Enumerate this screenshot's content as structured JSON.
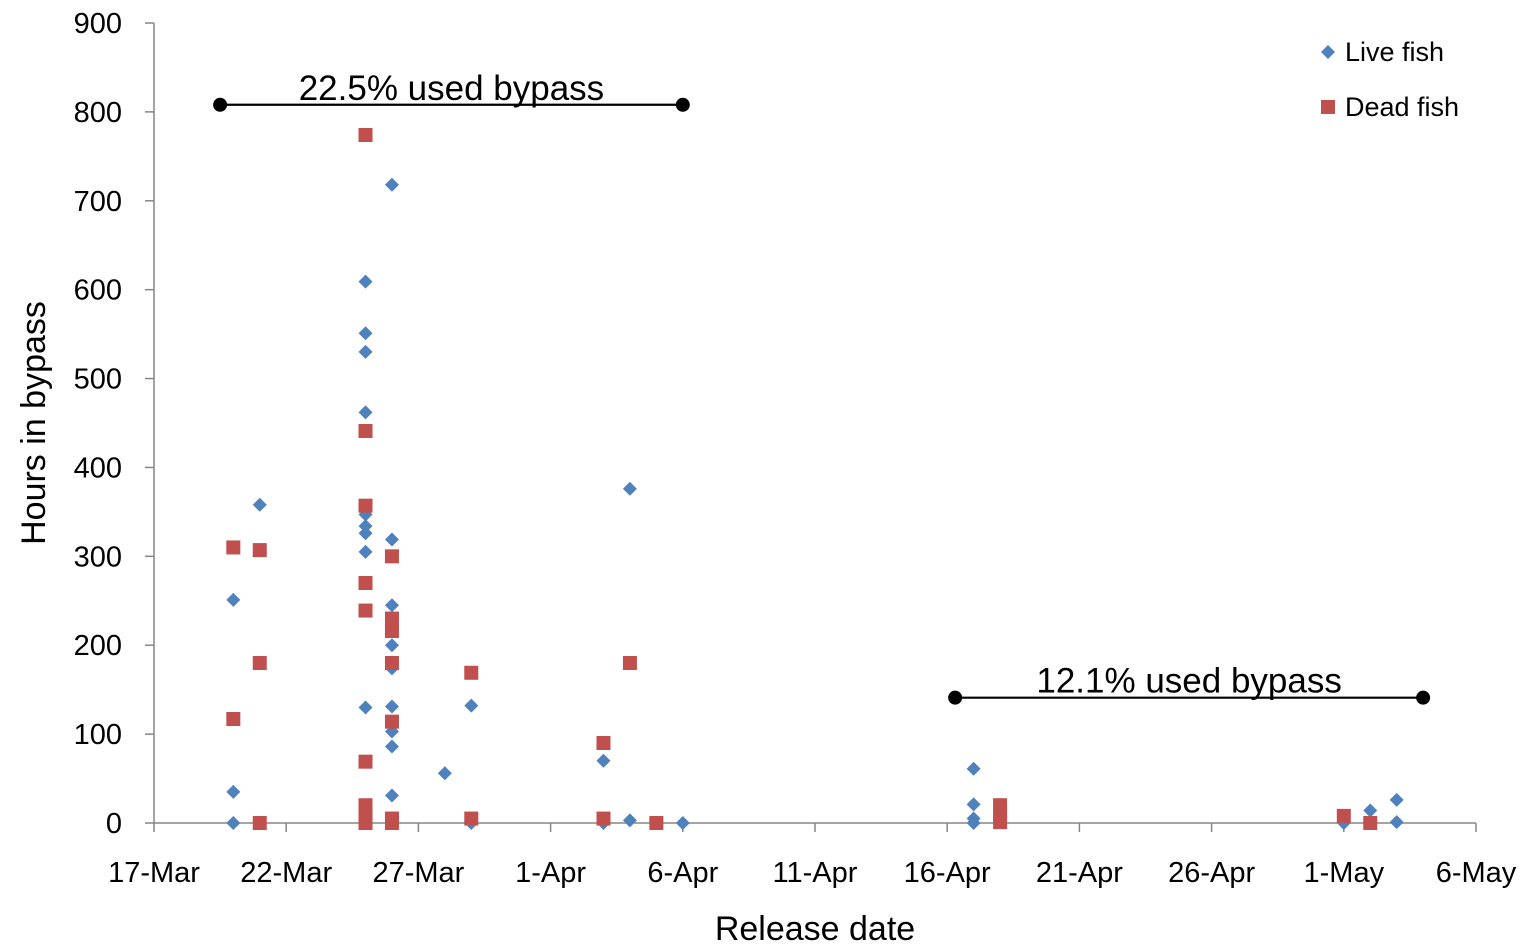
{
  "chart_data": {
    "type": "scatter",
    "xlabel": "Release date",
    "ylabel": "Hours in bypass",
    "ylim": [
      0,
      900
    ],
    "xlim": [
      "2011-03-17",
      "2011-05-06"
    ],
    "y_ticks": [
      0,
      100,
      200,
      300,
      400,
      500,
      600,
      700,
      800,
      900
    ],
    "x_ticks": [
      {
        "date": "2011-03-17",
        "label": "17-Mar"
      },
      {
        "date": "2011-03-22",
        "label": "22-Mar"
      },
      {
        "date": "2011-03-27",
        "label": "27-Mar"
      },
      {
        "date": "2011-04-01",
        "label": "1-Apr"
      },
      {
        "date": "2011-04-06",
        "label": "6-Apr"
      },
      {
        "date": "2011-04-11",
        "label": "11-Apr"
      },
      {
        "date": "2011-04-16",
        "label": "16-Apr"
      },
      {
        "date": "2011-04-21",
        "label": "21-Apr"
      },
      {
        "date": "2011-04-26",
        "label": "26-Apr"
      },
      {
        "date": "2011-05-01",
        "label": "1-May"
      },
      {
        "date": "2011-05-06",
        "label": "6-May"
      }
    ],
    "grid": false,
    "legend": "top-right",
    "series": [
      {
        "name": "Live fish",
        "color": "#4f81bd",
        "marker": "diamond",
        "points": [
          {
            "x": "2011-03-20",
            "y": 251
          },
          {
            "x": "2011-03-20",
            "y": 35
          },
          {
            "x": "2011-03-20",
            "y": 0
          },
          {
            "x": "2011-03-21",
            "y": 358
          },
          {
            "x": "2011-03-25",
            "y": 609
          },
          {
            "x": "2011-03-25",
            "y": 551
          },
          {
            "x": "2011-03-25",
            "y": 530
          },
          {
            "x": "2011-03-25",
            "y": 462
          },
          {
            "x": "2011-03-25",
            "y": 347
          },
          {
            "x": "2011-03-25",
            "y": 334
          },
          {
            "x": "2011-03-25",
            "y": 326
          },
          {
            "x": "2011-03-25",
            "y": 305
          },
          {
            "x": "2011-03-25",
            "y": 130
          },
          {
            "x": "2011-03-25",
            "y": 10
          },
          {
            "x": "2011-03-26",
            "y": 718
          },
          {
            "x": "2011-03-26",
            "y": 319
          },
          {
            "x": "2011-03-26",
            "y": 245
          },
          {
            "x": "2011-03-26",
            "y": 200
          },
          {
            "x": "2011-03-26",
            "y": 174
          },
          {
            "x": "2011-03-26",
            "y": 131
          },
          {
            "x": "2011-03-26",
            "y": 103
          },
          {
            "x": "2011-03-26",
            "y": 86
          },
          {
            "x": "2011-03-26",
            "y": 31
          },
          {
            "x": "2011-03-28",
            "y": 56
          },
          {
            "x": "2011-03-29",
            "y": 132
          },
          {
            "x": "2011-03-29",
            "y": 0
          },
          {
            "x": "2011-04-03",
            "y": 70
          },
          {
            "x": "2011-04-03",
            "y": 0
          },
          {
            "x": "2011-04-04",
            "y": 376
          },
          {
            "x": "2011-04-04",
            "y": 3
          },
          {
            "x": "2011-04-06",
            "y": 0
          },
          {
            "x": "2011-04-17",
            "y": 61
          },
          {
            "x": "2011-04-17",
            "y": 21
          },
          {
            "x": "2011-04-17",
            "y": 5
          },
          {
            "x": "2011-04-17",
            "y": 0
          },
          {
            "x": "2011-05-01",
            "y": 0
          },
          {
            "x": "2011-05-02",
            "y": 14
          },
          {
            "x": "2011-05-03",
            "y": 26
          },
          {
            "x": "2011-05-03",
            "y": 1
          }
        ]
      },
      {
        "name": "Dead fish",
        "color": "#c0504d",
        "marker": "square",
        "points": [
          {
            "x": "2011-03-20",
            "y": 310
          },
          {
            "x": "2011-03-20",
            "y": 117
          },
          {
            "x": "2011-03-21",
            "y": 307
          },
          {
            "x": "2011-03-21",
            "y": 180
          },
          {
            "x": "2011-03-21",
            "y": 0
          },
          {
            "x": "2011-03-25",
            "y": 774
          },
          {
            "x": "2011-03-25",
            "y": 441
          },
          {
            "x": "2011-03-25",
            "y": 357
          },
          {
            "x": "2011-03-25",
            "y": 270
          },
          {
            "x": "2011-03-25",
            "y": 239
          },
          {
            "x": "2011-03-25",
            "y": 69
          },
          {
            "x": "2011-03-25",
            "y": 20
          },
          {
            "x": "2011-03-25",
            "y": 10
          },
          {
            "x": "2011-03-25",
            "y": 0
          },
          {
            "x": "2011-03-26",
            "y": 300
          },
          {
            "x": "2011-03-26",
            "y": 230
          },
          {
            "x": "2011-03-26",
            "y": 216
          },
          {
            "x": "2011-03-26",
            "y": 180
          },
          {
            "x": "2011-03-26",
            "y": 114
          },
          {
            "x": "2011-03-26",
            "y": 5
          },
          {
            "x": "2011-03-26",
            "y": 0
          },
          {
            "x": "2011-03-29",
            "y": 169
          },
          {
            "x": "2011-03-29",
            "y": 5
          },
          {
            "x": "2011-04-03",
            "y": 90
          },
          {
            "x": "2011-04-03",
            "y": 5
          },
          {
            "x": "2011-04-04",
            "y": 180
          },
          {
            "x": "2011-04-05",
            "y": 0
          },
          {
            "x": "2011-04-18",
            "y": 20
          },
          {
            "x": "2011-04-18",
            "y": 10
          },
          {
            "x": "2011-04-18",
            "y": 1
          },
          {
            "x": "2011-05-01",
            "y": 8
          },
          {
            "x": "2011-05-02",
            "y": 0
          }
        ]
      }
    ],
    "annotations": [
      {
        "text": "22.5% used bypass",
        "x_start": "2011-03-19.5",
        "x_end": "2011-04-06",
        "y": 808
      },
      {
        "text": "12.1% used bypass",
        "x_start": "2011-04-16.3",
        "x_end": "2011-05-04",
        "y": 141
      }
    ]
  }
}
